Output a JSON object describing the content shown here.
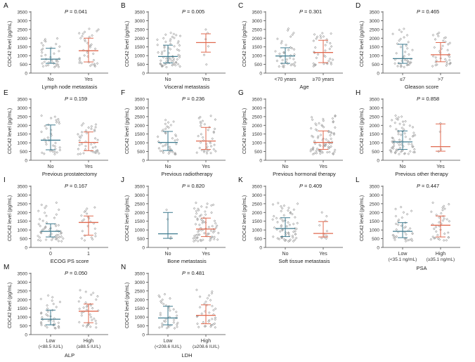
{
  "figure": {
    "y_label": "CDC42 level (pg/mL)",
    "y_ticks": [
      "0",
      "500",
      "1000",
      "1500",
      "2000",
      "2500",
      "3000",
      "3500"
    ],
    "colors": {
      "group_a": "#3d7a8e",
      "group_b": "#e0694f",
      "marker": "#9a9a9a",
      "axis": "#4a4a4a"
    }
  },
  "chart_data": [
    {
      "type": "scatter",
      "panel": "A",
      "p_text": "P",
      "p_value": "= 0.041",
      "xlabel": "Lymph node metastasis",
      "ylim": [
        0,
        3500
      ],
      "groups": [
        {
          "label": "No",
          "n": 36,
          "min": 350,
          "max": 2000,
          "q1": 560,
          "median": 800,
          "q3": 1420,
          "whisker_low": 560,
          "whisker_high": 1420
        },
        {
          "label": "Yes",
          "n": 36,
          "min": 400,
          "max": 2550,
          "q1": 640,
          "median": 1280,
          "q3": 2000,
          "whisker_low": 640,
          "whisker_high": 2000
        }
      ]
    },
    {
      "type": "scatter",
      "panel": "B",
      "p_text": "P",
      "p_value": "= 0.005",
      "xlabel": "Visceral metastasis",
      "ylim": [
        0,
        3500
      ],
      "groups": [
        {
          "label": "No",
          "n": 64,
          "min": 350,
          "max": 2300,
          "q1": 580,
          "median": 950,
          "q3": 1600,
          "whisker_low": 580,
          "whisker_high": 1600
        },
        {
          "label": "Yes",
          "n": 6,
          "min": 500,
          "max": 2500,
          "q1": 1200,
          "median": 1750,
          "q3": 2250,
          "whisker_low": 1200,
          "whisker_high": 2250
        }
      ]
    },
    {
      "type": "scatter",
      "panel": "C",
      "p_text": "P",
      "p_value": "= 0.301",
      "xlabel": "Age",
      "ylim": [
        0,
        3500
      ],
      "groups": [
        {
          "label": "<70 years",
          "n": 38,
          "min": 350,
          "max": 2550,
          "q1": 560,
          "median": 980,
          "q3": 1450,
          "whisker_low": 560,
          "whisker_high": 1450
        },
        {
          "label": "≥70 years",
          "n": 36,
          "min": 400,
          "max": 2300,
          "q1": 600,
          "median": 1180,
          "q3": 1880,
          "whisker_low": 600,
          "whisker_high": 1880
        }
      ]
    },
    {
      "type": "scatter",
      "panel": "D",
      "p_text": "P",
      "p_value": "= 0.465",
      "xlabel": "Gleason score",
      "ylim": [
        0,
        3500
      ],
      "groups": [
        {
          "label": "≤7",
          "n": 38,
          "min": 350,
          "max": 2550,
          "q1": 560,
          "median": 830,
          "q3": 1650,
          "whisker_low": 560,
          "whisker_high": 1650
        },
        {
          "label": ">7",
          "n": 36,
          "min": 400,
          "max": 2300,
          "q1": 650,
          "median": 1050,
          "q3": 1750,
          "whisker_low": 650,
          "whisker_high": 1750
        }
      ]
    },
    {
      "type": "scatter",
      "panel": "E",
      "p_text": "P",
      "p_value": "= 0.159",
      "xlabel": "Previous prostatectomy",
      "ylim": [
        0,
        3500
      ],
      "groups": [
        {
          "label": "No",
          "n": 34,
          "min": 350,
          "max": 2550,
          "q1": 600,
          "median": 1150,
          "q3": 2020,
          "whisker_low": 600,
          "whisker_high": 2020
        },
        {
          "label": "Yes",
          "n": 40,
          "min": 350,
          "max": 2100,
          "q1": 550,
          "median": 1020,
          "q3": 1620,
          "whisker_low": 550,
          "whisker_high": 1620
        }
      ]
    },
    {
      "type": "scatter",
      "panel": "F",
      "p_text": "P",
      "p_value": "= 0.236",
      "xlabel": "Previous radiotherapy",
      "ylim": [
        0,
        3500
      ],
      "groups": [
        {
          "label": "No",
          "n": 38,
          "min": 350,
          "max": 2300,
          "q1": 560,
          "median": 1020,
          "q3": 1650,
          "whisker_low": 560,
          "whisker_high": 1650
        },
        {
          "label": "Yes",
          "n": 38,
          "min": 400,
          "max": 2550,
          "q1": 620,
          "median": 1100,
          "q3": 1880,
          "whisker_low": 620,
          "whisker_high": 1880
        }
      ]
    },
    {
      "type": "scatter",
      "panel": "G",
      "p_text": "",
      "p_value": "",
      "xlabel": "Previous hormonal therapy",
      "ylim": [
        0,
        3500
      ],
      "groups": [
        {
          "label": "No",
          "n": 0,
          "min": 0,
          "max": 0,
          "q1": 0,
          "median": 0,
          "q3": 0,
          "whisker_low": 0,
          "whisker_high": 0
        },
        {
          "label": "Yes",
          "n": 76,
          "min": 350,
          "max": 2550,
          "q1": 620,
          "median": 1020,
          "q3": 1680,
          "whisker_low": 620,
          "whisker_high": 1680
        }
      ]
    },
    {
      "type": "scatter",
      "panel": "H",
      "p_text": "P",
      "p_value": "= 0.858",
      "xlabel": "Previous other therapy",
      "ylim": [
        0,
        3500
      ],
      "groups": [
        {
          "label": "No",
          "n": 70,
          "min": 350,
          "max": 2550,
          "q1": 620,
          "median": 1050,
          "q3": 1680,
          "whisker_low": 620,
          "whisker_high": 1680
        },
        {
          "label": "Yes",
          "n": 4,
          "min": 500,
          "max": 2100,
          "q1": 520,
          "median": 780,
          "q3": 2080,
          "whisker_low": 520,
          "whisker_high": 2080
        }
      ]
    },
    {
      "type": "scatter",
      "panel": "I",
      "p_text": "P",
      "p_value": "= 0.167",
      "xlabel": "ECOG PS score",
      "ylim": [
        0,
        3500
      ],
      "groups": [
        {
          "label": "0",
          "n": 52,
          "min": 350,
          "max": 2550,
          "q1": 600,
          "median": 920,
          "q3": 1350,
          "whisker_low": 600,
          "whisker_high": 1350
        },
        {
          "label": "1",
          "n": 22,
          "min": 400,
          "max": 2300,
          "q1": 700,
          "median": 1430,
          "q3": 1800,
          "whisker_low": 700,
          "whisker_high": 1800
        }
      ]
    },
    {
      "type": "scatter",
      "panel": "J",
      "p_text": "P",
      "p_value": "= 0.820",
      "xlabel": "Bone metastasis",
      "ylim": [
        0,
        3500
      ],
      "groups": [
        {
          "label": "No",
          "n": 4,
          "min": 500,
          "max": 2150,
          "q1": 520,
          "median": 780,
          "q3": 2000,
          "whisker_low": 520,
          "whisker_high": 2000
        },
        {
          "label": "Yes",
          "n": 70,
          "min": 350,
          "max": 2550,
          "q1": 620,
          "median": 1050,
          "q3": 1680,
          "whisker_low": 620,
          "whisker_high": 1680
        }
      ]
    },
    {
      "type": "scatter",
      "panel": "K",
      "p_text": "P",
      "p_value": "= 0.409",
      "xlabel": "Soft tissue metastasis",
      "ylim": [
        0,
        3500
      ],
      "groups": [
        {
          "label": "No",
          "n": 64,
          "min": 350,
          "max": 2550,
          "q1": 620,
          "median": 1080,
          "q3": 1700,
          "whisker_low": 620,
          "whisker_high": 1700
        },
        {
          "label": "Yes",
          "n": 10,
          "min": 500,
          "max": 2000,
          "q1": 600,
          "median": 800,
          "q3": 1480,
          "whisker_low": 600,
          "whisker_high": 1480
        }
      ]
    },
    {
      "type": "scatter",
      "panel": "L",
      "p_text": "P",
      "p_value": "= 0.447",
      "xlabel": "PSA",
      "ylim": [
        0,
        3500
      ],
      "groups": [
        {
          "label": "Low",
          "label2": "(<35.1 ng/mL)",
          "n": 36,
          "min": 350,
          "max": 2300,
          "q1": 560,
          "median": 920,
          "q3": 1420,
          "whisker_low": 560,
          "whisker_high": 1420
        },
        {
          "label": "High",
          "label2": "(≥35.1 ng/mL)",
          "n": 36,
          "min": 400,
          "max": 2550,
          "q1": 600,
          "median": 1270,
          "q3": 1800,
          "whisker_low": 600,
          "whisker_high": 1800
        }
      ]
    },
    {
      "type": "scatter",
      "panel": "M",
      "p_text": "P",
      "p_value": "= 0.050",
      "xlabel": "ALP",
      "ylim": [
        0,
        3500
      ],
      "groups": [
        {
          "label": "Low",
          "label2": "(<88.5 IU/L)",
          "n": 36,
          "min": 350,
          "max": 2250,
          "q1": 560,
          "median": 880,
          "q3": 1400,
          "whisker_low": 560,
          "whisker_high": 1400
        },
        {
          "label": "High",
          "label2": "(≥88.5 IU/L)",
          "n": 36,
          "min": 400,
          "max": 2550,
          "q1": 680,
          "median": 1340,
          "q3": 1750,
          "whisker_low": 680,
          "whisker_high": 1750
        }
      ]
    },
    {
      "type": "scatter",
      "panel": "N",
      "p_text": "P",
      "p_value": "= 0.481",
      "xlabel": "LDH",
      "ylim": [
        0,
        3500
      ],
      "groups": [
        {
          "label": "Low",
          "label2": "(<208.6 IU/L)",
          "n": 36,
          "min": 350,
          "max": 2300,
          "q1": 560,
          "median": 950,
          "q3": 1620,
          "whisker_low": 560,
          "whisker_high": 1620
        },
        {
          "label": "High",
          "label2": "(≥208.6 IU/L)",
          "n": 36,
          "min": 400,
          "max": 2550,
          "q1": 620,
          "median": 1100,
          "q3": 1700,
          "whisker_low": 620,
          "whisker_high": 1700
        }
      ]
    }
  ]
}
